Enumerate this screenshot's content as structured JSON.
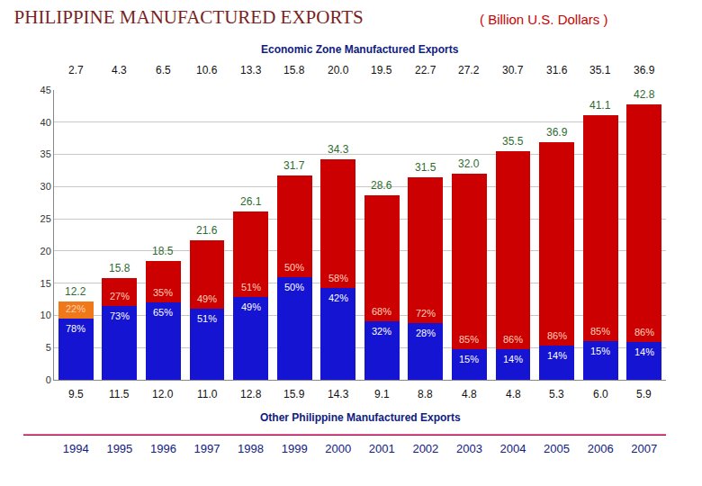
{
  "chart_data": {
    "type": "bar",
    "title": "PHILIPPINE MANUFACTURED EXPORTS",
    "subtitle": "( Billion U.S. Dollars )",
    "categories": [
      "1994",
      "1995",
      "1996",
      "1997",
      "1998",
      "1999",
      "2000",
      "2001",
      "2002",
      "2003",
      "2004",
      "2005",
      "2006",
      "2007"
    ],
    "stacked": true,
    "data_labels": true,
    "grid": true,
    "ylim": [
      0,
      45
    ],
    "yticks": [
      0,
      5,
      10,
      15,
      20,
      25,
      30,
      35,
      40,
      45
    ],
    "series": [
      {
        "name": "Other Philippine Manufactured Exports",
        "color": "#1414d2",
        "values": [
          9.5,
          11.5,
          12.0,
          11.0,
          12.8,
          15.9,
          14.3,
          9.1,
          8.8,
          4.8,
          4.8,
          5.3,
          6.0,
          5.9
        ],
        "value_labels": [
          "9.5",
          "11.5",
          "12.0",
          "11.0",
          "12.8",
          "15.9",
          "14.3",
          "9.1",
          "8.8",
          "4.8",
          "4.8",
          "5.3",
          "6.0",
          "5.9"
        ],
        "share_labels": [
          "78%",
          "73%",
          "65%",
          "51%",
          "49%",
          "50%",
          "42%",
          "32%",
          "28%",
          "15%",
          "14%",
          "14%",
          "15%",
          "14%"
        ]
      },
      {
        "name": "Economic Zone Manufactured Exports",
        "colors": [
          "#f07818",
          "#cc0000",
          "#cc0000",
          "#cc0000",
          "#cc0000",
          "#cc0000",
          "#cc0000",
          "#cc0000",
          "#cc0000",
          "#cc0000",
          "#cc0000",
          "#cc0000",
          "#cc0000",
          "#cc0000"
        ],
        "values": [
          2.7,
          4.3,
          6.5,
          10.6,
          13.3,
          15.8,
          20.0,
          19.5,
          22.7,
          27.2,
          30.7,
          31.6,
          35.1,
          36.9
        ],
        "value_labels": [
          "2.7",
          "4.3",
          "6.5",
          "10.6",
          "13.3",
          "15.8",
          "20.0",
          "19.5",
          "22.7",
          "27.2",
          "30.7",
          "31.6",
          "35.1",
          "36.9"
        ],
        "share_labels": [
          "22%",
          "27%",
          "35%",
          "49%",
          "51%",
          "50%",
          "58%",
          "68%",
          "72%",
          "85%",
          "86%",
          "86%",
          "85%",
          "86%"
        ]
      }
    ],
    "totals": [
      12.2,
      15.8,
      18.5,
      21.6,
      26.1,
      31.7,
      34.3,
      28.6,
      31.5,
      32.0,
      35.5,
      36.9,
      41.1,
      42.8
    ],
    "total_labels": [
      "12.2",
      "15.8",
      "18.5",
      "21.6",
      "26.1",
      "31.7",
      "34.3",
      "28.6",
      "31.5",
      "32.0",
      "35.5",
      "36.9",
      "41.1",
      "42.8"
    ]
  }
}
